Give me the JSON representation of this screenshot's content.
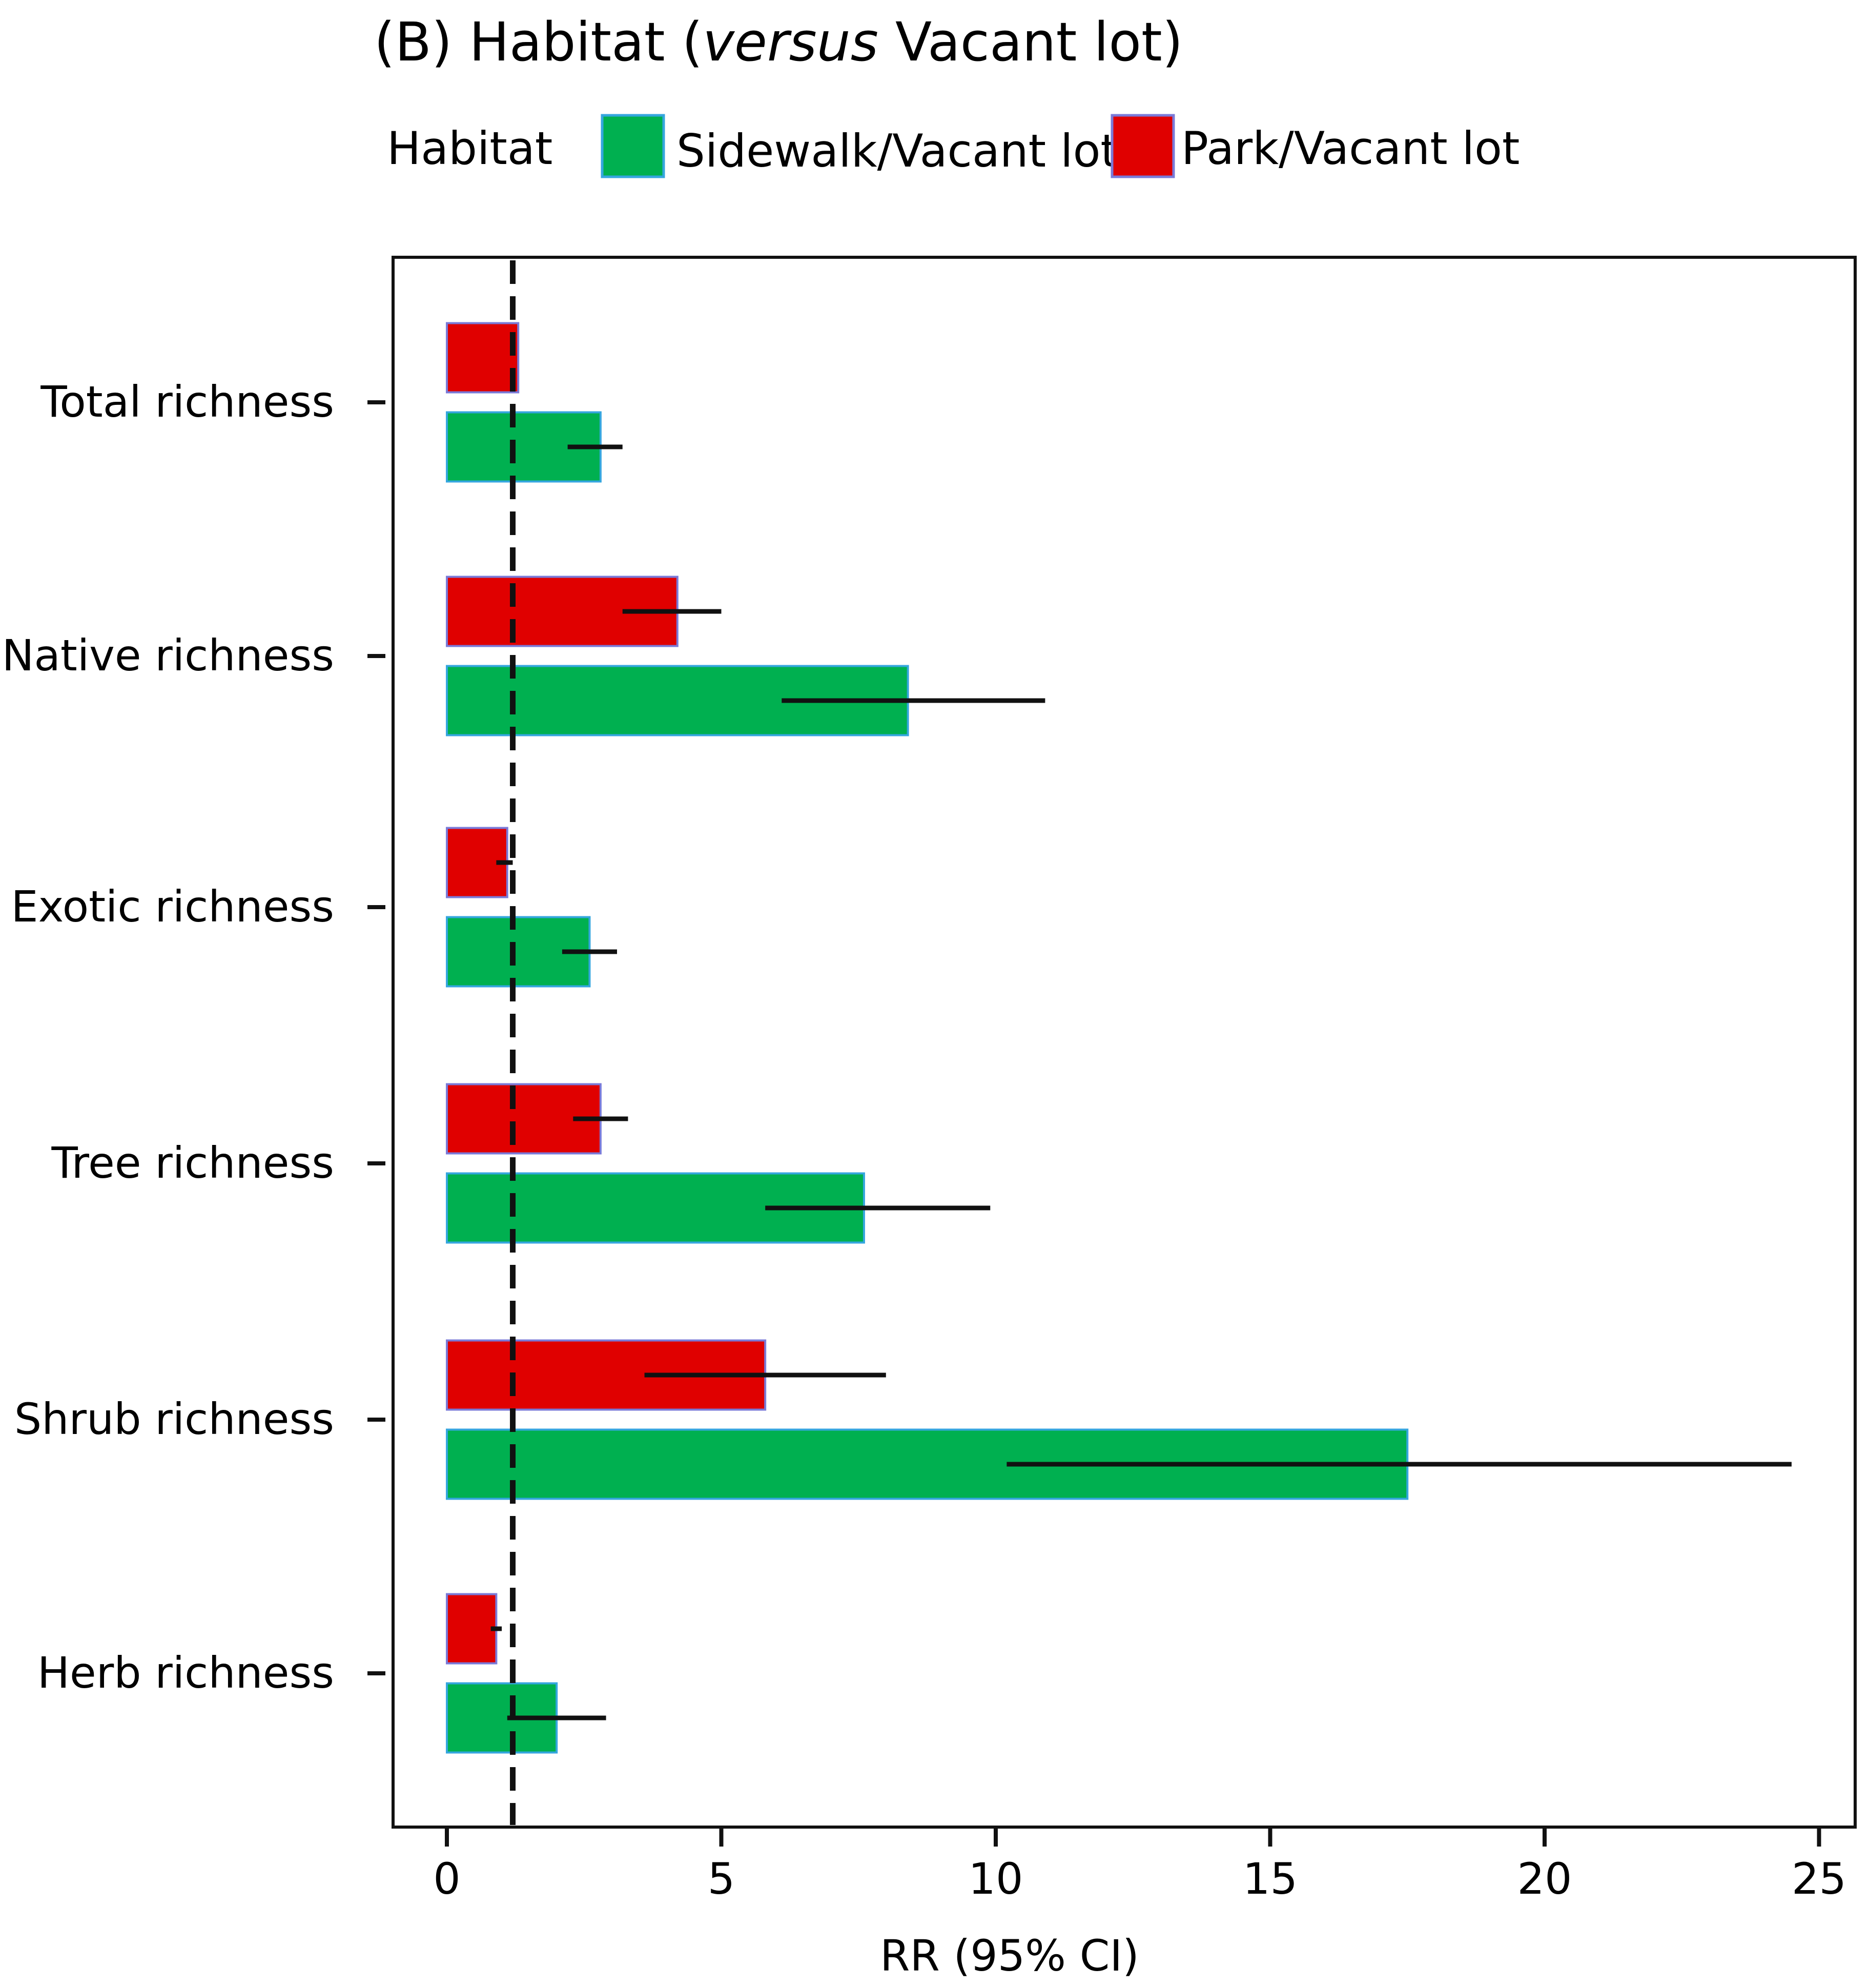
{
  "chart_data": {
    "type": "bar",
    "orientation": "horizontal",
    "title_parts": [
      {
        "text": "(B) Habitat (",
        "italic": false
      },
      {
        "text": "versus",
        "italic": true
      },
      {
        "text": " Vacant lot)",
        "italic": false
      }
    ],
    "legend_title": "Habitat",
    "legend_position": "top",
    "xlabel": "RR (95% CI)",
    "ylabel": "",
    "xlim": [
      -1,
      25.6
    ],
    "xticks": [
      0,
      5,
      10,
      15,
      20,
      25
    ],
    "reference_line": 1.2,
    "categories": [
      "Total richness",
      "Native richness",
      "Exotic richness",
      "Tree richness",
      "Shrub richness",
      "Herb richness"
    ],
    "series": [
      {
        "name": "Park/Vacant lot",
        "color": "#e00000",
        "values": [
          1.3,
          4.2,
          1.1,
          2.8,
          5.8,
          0.9
        ],
        "ci_low": [
          null,
          3.2,
          0.9,
          2.3,
          3.6,
          0.8
        ],
        "ci_high": [
          null,
          5.0,
          1.2,
          3.3,
          8.0,
          1.0
        ]
      },
      {
        "name": "Sidewalk/Vacant lot",
        "color": "#00b050",
        "values": [
          2.8,
          8.4,
          2.6,
          7.6,
          17.5,
          2.0
        ],
        "ci_low": [
          2.2,
          6.1,
          2.1,
          5.8,
          10.2,
          1.1
        ],
        "ci_high": [
          3.2,
          10.9,
          3.1,
          9.9,
          24.5,
          2.9
        ]
      }
    ]
  }
}
